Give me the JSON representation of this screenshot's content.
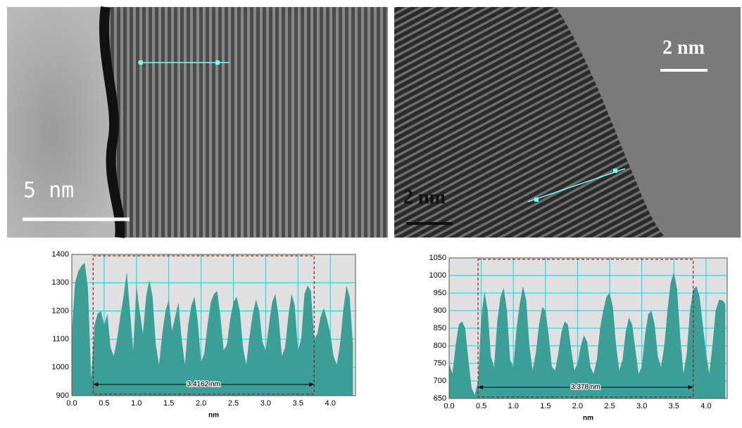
{
  "images": [
    {
      "scale_label": "5 nm"
    },
    {
      "scale_label": "2 nm",
      "scale_label_2": "2 nm"
    }
  ],
  "chart_data": [
    {
      "type": "area",
      "x_label": "nm",
      "color": "#3b9f98",
      "grid": true,
      "xlim": [
        0,
        4.39
      ],
      "ylim": [
        900,
        1400
      ],
      "xticks": [
        {
          "value": 0,
          "label": "0.0"
        },
        0.5,
        {
          "value": 1,
          "label": "1.0"
        },
        1.5,
        {
          "value": 2,
          "label": "2.0"
        },
        2.5,
        {
          "value": 3,
          "label": "3.0"
        },
        3.5,
        {
          "value": 4,
          "label": "4.0"
        }
      ],
      "yticks": [
        900,
        1000,
        1100,
        1200,
        1300,
        1400
      ],
      "measurement": {
        "start": 0.33,
        "end": 3.75,
        "label": "3.4162 nm"
      },
      "x": [
        0,
        0.05,
        0.1,
        0.15,
        0.2,
        0.25,
        0.3,
        0.35,
        0.4,
        0.45,
        0.5,
        0.55,
        0.6,
        0.65,
        0.7,
        0.75,
        0.8,
        0.85,
        0.9,
        0.95,
        1,
        1.05,
        1.1,
        1.15,
        1.2,
        1.25,
        1.3,
        1.35,
        1.4,
        1.45,
        1.5,
        1.55,
        1.6,
        1.65,
        1.7,
        1.75,
        1.8,
        1.85,
        1.9,
        1.95,
        2,
        2.05,
        2.1,
        2.15,
        2.2,
        2.25,
        2.3,
        2.35,
        2.4,
        2.45,
        2.5,
        2.55,
        2.6,
        2.65,
        2.7,
        2.75,
        2.8,
        2.85,
        2.9,
        2.95,
        3,
        3.05,
        3.1,
        3.15,
        3.2,
        3.25,
        3.3,
        3.35,
        3.4,
        3.45,
        3.5,
        3.55,
        3.6,
        3.65,
        3.7,
        3.75,
        3.8,
        3.85,
        3.9,
        3.95,
        4,
        4.05,
        4.1,
        4.15,
        4.2,
        4.25,
        4.3,
        4.35
      ],
      "values": [
        1120,
        1300,
        1340,
        1360,
        1370,
        1280,
        960,
        1150,
        1190,
        1200,
        1150,
        1190,
        1070,
        1040,
        1100,
        1180,
        1250,
        1340,
        1200,
        1060,
        1290,
        1200,
        1120,
        1250,
        1310,
        1250,
        1080,
        1010,
        1120,
        1200,
        1240,
        1130,
        1180,
        1230,
        1100,
        1010,
        1150,
        1220,
        1250,
        1160,
        1020,
        1050,
        1150,
        1230,
        1260,
        1270,
        1180,
        1060,
        1080,
        1170,
        1230,
        1250,
        1200,
        1070,
        1010,
        1110,
        1190,
        1240,
        1200,
        1090,
        1060,
        1150,
        1230,
        1260,
        1180,
        1040,
        1070,
        1180,
        1260,
        1220,
        1060,
        1100,
        1260,
        1290,
        1270,
        1100,
        1120,
        1180,
        1210,
        1170,
        1120,
        1040,
        1010,
        1080,
        1200,
        1290,
        1250,
        1080
      ]
    },
    {
      "type": "area",
      "x_label": "nm",
      "color": "#3b9f98",
      "grid": true,
      "xlim": [
        0,
        4.33
      ],
      "ylim": [
        650,
        1050
      ],
      "xticks": [
        {
          "value": 0,
          "label": "0.0"
        },
        0.5,
        {
          "value": 1,
          "label": "1.0"
        },
        1.5,
        {
          "value": 2,
          "label": "2.0"
        },
        2.5,
        {
          "value": 3,
          "label": "3.0"
        },
        3.5,
        {
          "value": 4,
          "label": "4.0"
        }
      ],
      "yticks": [
        650,
        700,
        750,
        800,
        850,
        900,
        950,
        1000,
        1050
      ],
      "measurement": {
        "start": 0.45,
        "end": 3.8,
        "label": "3.378 nm"
      },
      "x": [
        0,
        0.05,
        0.1,
        0.15,
        0.2,
        0.25,
        0.3,
        0.35,
        0.4,
        0.45,
        0.5,
        0.55,
        0.6,
        0.65,
        0.7,
        0.75,
        0.8,
        0.85,
        0.9,
        0.95,
        1,
        1.05,
        1.1,
        1.15,
        1.2,
        1.25,
        1.3,
        1.35,
        1.4,
        1.45,
        1.5,
        1.55,
        1.6,
        1.65,
        1.7,
        1.75,
        1.8,
        1.85,
        1.9,
        1.95,
        2,
        2.05,
        2.1,
        2.15,
        2.2,
        2.25,
        2.3,
        2.35,
        2.4,
        2.45,
        2.5,
        2.55,
        2.6,
        2.65,
        2.7,
        2.75,
        2.8,
        2.85,
        2.9,
        2.95,
        3,
        3.05,
        3.1,
        3.15,
        3.2,
        3.25,
        3.3,
        3.35,
        3.4,
        3.45,
        3.5,
        3.55,
        3.6,
        3.65,
        3.7,
        3.75,
        3.8,
        3.85,
        3.9,
        3.95,
        4,
        4.05,
        4.1,
        4.15,
        4.2,
        4.25,
        4.3
      ],
      "values": [
        750,
        720,
        800,
        860,
        870,
        850,
        760,
        680,
        660,
        700,
        880,
        955,
        900,
        770,
        740,
        870,
        940,
        965,
        900,
        760,
        740,
        850,
        920,
        970,
        930,
        800,
        730,
        780,
        860,
        910,
        900,
        830,
        740,
        730,
        780,
        840,
        870,
        860,
        790,
        730,
        750,
        800,
        830,
        810,
        740,
        720,
        760,
        850,
        900,
        940,
        950,
        910,
        800,
        730,
        760,
        840,
        880,
        860,
        790,
        720,
        740,
        830,
        890,
        900,
        860,
        770,
        740,
        800,
        900,
        980,
        1010,
        960,
        820,
        720,
        780,
        900,
        960,
        970,
        940,
        860,
        780,
        720,
        800,
        900,
        930,
        930,
        920
      ]
    }
  ]
}
